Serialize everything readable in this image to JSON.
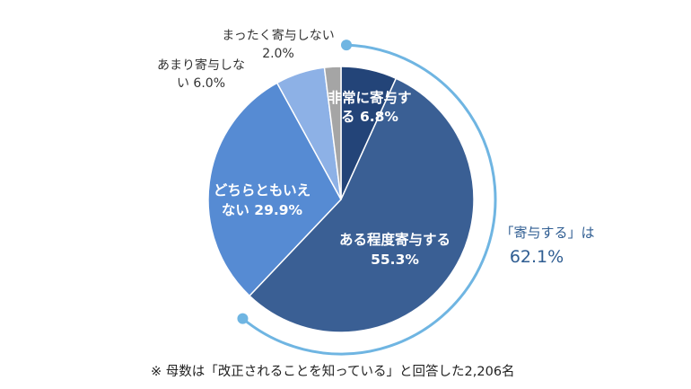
{
  "chart_data": {
    "type": "pie",
    "slices": [
      {
        "label": "非常に寄与する",
        "value": 6.8,
        "color": "#234478",
        "text": [
          "非常に寄与す",
          "る 6.8%"
        ]
      },
      {
        "label": "ある程度寄与する",
        "value": 55.3,
        "color": "#3a5f94",
        "text": [
          "ある程度寄与する",
          "55.3%"
        ]
      },
      {
        "label": "どちらともいえない",
        "value": 29.9,
        "color": "#568bd3",
        "text": [
          "どちらともいえ",
          "ない 29.9%"
        ]
      },
      {
        "label": "あまり寄与しない",
        "value": 6.0,
        "color": "#8db1e6",
        "text": [
          "あまり寄与しな",
          "い 6.0%"
        ]
      },
      {
        "label": "まったく寄与しない",
        "value": 2.0,
        "color": "#a5a5a5",
        "text": [
          "まったく寄与しない",
          "2.0%"
        ]
      }
    ],
    "callout": {
      "line1": "「寄与する」は",
      "line2": "62.1%",
      "color": "#6fb5e2"
    }
  },
  "footnote": "※ 母数は「改正されることを知っている」と回答した2,206名"
}
